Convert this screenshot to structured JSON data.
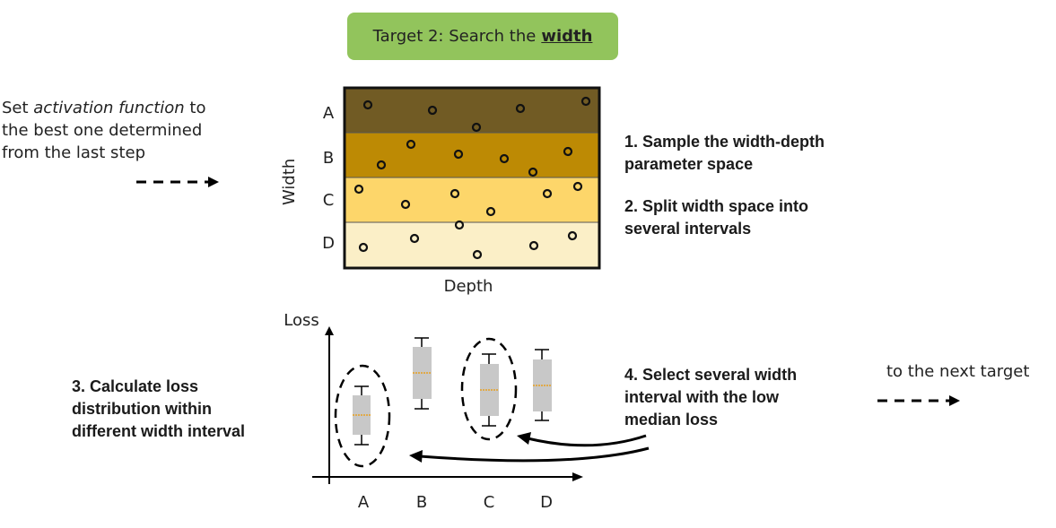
{
  "title": {
    "prefix": "Target 2: Search the",
    "emphasis": "width"
  },
  "intro": {
    "line1_a": "Set ",
    "line1_em": "activation function",
    "line1_b": " to",
    "line2": "the best one determined",
    "line3": "from the last step"
  },
  "grid": {
    "y_axis_label": "Width",
    "x_axis_label": "Depth",
    "bands": [
      {
        "label": "A",
        "color": "#715b24"
      },
      {
        "label": "B",
        "color": "#bd8a04"
      },
      {
        "label": "C",
        "color": "#fdd66a"
      },
      {
        "label": "D",
        "color": "#fbefc7"
      }
    ]
  },
  "steps": {
    "step1_line1": "1. Sample the width-depth",
    "step1_line2": "parameter space",
    "step2_line1": "2. Split width space into",
    "step2_line2": "several intervals",
    "step3_line1": "3. Calculate loss",
    "step3_line2": "distribution within",
    "step3_line3": "different width interval",
    "step4_line1": "4. Select several width",
    "step4_line2": "interval with the low",
    "step4_line3": "median loss"
  },
  "boxplot": {
    "y_axis_label": "Loss",
    "categories": [
      "A",
      "B",
      "C",
      "D"
    ],
    "selected": [
      "A",
      "C"
    ],
    "box_color": "#c8c8c8",
    "median_color": "#e8a020"
  },
  "next": {
    "label": "to the next target"
  }
}
